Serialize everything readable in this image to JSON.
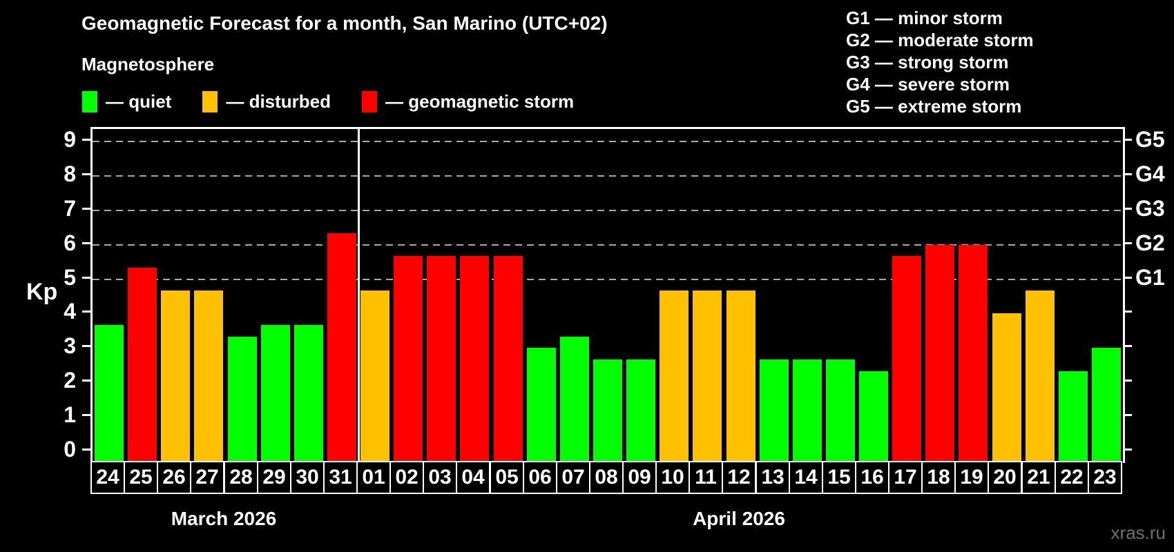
{
  "title": "Geomagnetic Forecast for a month, San Marino (UTC+02)",
  "subtitle": "Magnetosphere",
  "legend": {
    "items": [
      {
        "key": "quiet",
        "label": "— quiet",
        "color": "#00ff00"
      },
      {
        "key": "disturbed",
        "label": "— disturbed",
        "color": "#ffc000"
      },
      {
        "key": "storm",
        "label": "— geomagnetic storm",
        "color": "#ff0000"
      }
    ]
  },
  "g_legend": [
    "G1 — minor storm",
    "G2 — moderate storm",
    "G3 — strong storm",
    "G4 — severe storm",
    "G5 — extreme storm"
  ],
  "watermark": "xras.ru",
  "chart_data": {
    "type": "bar",
    "title": "Geomagnetic Forecast for a month, San Marino (UTC+02)",
    "subtitle": "Magnetosphere",
    "ylabel": "Kp",
    "ylim": [
      0,
      9.35
    ],
    "yticks": [
      0,
      1,
      2,
      3,
      4,
      5,
      6,
      7,
      8,
      9
    ],
    "gridlines_at": [
      5,
      6,
      7,
      8,
      9
    ],
    "grid": "dashed-horizontal",
    "legend_position": "top-left",
    "right_axis": [
      {
        "kp": 5,
        "label": "G1"
      },
      {
        "kp": 6,
        "label": "G2"
      },
      {
        "kp": 7,
        "label": "G3"
      },
      {
        "kp": 8,
        "label": "G4"
      },
      {
        "kp": 9,
        "label": "G5"
      }
    ],
    "colors": {
      "quiet": "#00ff00",
      "disturbed": "#ffc000",
      "storm": "#ff0000"
    },
    "groups": [
      {
        "label": "March 2026",
        "count": 8
      },
      {
        "label": "April 2026",
        "count": 23
      }
    ],
    "bars": [
      {
        "date": "24",
        "value": 3.67,
        "level": "quiet"
      },
      {
        "date": "25",
        "value": 5.33,
        "level": "storm"
      },
      {
        "date": "26",
        "value": 4.67,
        "level": "disturbed"
      },
      {
        "date": "27",
        "value": 4.67,
        "level": "disturbed"
      },
      {
        "date": "28",
        "value": 3.33,
        "level": "quiet"
      },
      {
        "date": "29",
        "value": 3.67,
        "level": "quiet"
      },
      {
        "date": "30",
        "value": 3.67,
        "level": "quiet"
      },
      {
        "date": "31",
        "value": 6.33,
        "level": "storm"
      },
      {
        "date": "01",
        "value": 4.67,
        "level": "disturbed"
      },
      {
        "date": "02",
        "value": 5.67,
        "level": "storm"
      },
      {
        "date": "03",
        "value": 5.67,
        "level": "storm"
      },
      {
        "date": "04",
        "value": 5.67,
        "level": "storm"
      },
      {
        "date": "05",
        "value": 5.67,
        "level": "storm"
      },
      {
        "date": "06",
        "value": 3.0,
        "level": "quiet"
      },
      {
        "date": "07",
        "value": 3.33,
        "level": "quiet"
      },
      {
        "date": "08",
        "value": 2.67,
        "level": "quiet"
      },
      {
        "date": "09",
        "value": 2.67,
        "level": "quiet"
      },
      {
        "date": "10",
        "value": 4.67,
        "level": "disturbed"
      },
      {
        "date": "11",
        "value": 4.67,
        "level": "disturbed"
      },
      {
        "date": "12",
        "value": 4.67,
        "level": "disturbed"
      },
      {
        "date": "13",
        "value": 2.67,
        "level": "quiet"
      },
      {
        "date": "14",
        "value": 2.67,
        "level": "quiet"
      },
      {
        "date": "15",
        "value": 2.67,
        "level": "quiet"
      },
      {
        "date": "16",
        "value": 2.33,
        "level": "quiet"
      },
      {
        "date": "17",
        "value": 5.67,
        "level": "storm"
      },
      {
        "date": "18",
        "value": 6.0,
        "level": "storm"
      },
      {
        "date": "19",
        "value": 6.0,
        "level": "storm"
      },
      {
        "date": "20",
        "value": 4.0,
        "level": "disturbed"
      },
      {
        "date": "21",
        "value": 4.67,
        "level": "disturbed"
      },
      {
        "date": "22",
        "value": 2.33,
        "level": "quiet"
      },
      {
        "date": "23",
        "value": 3.0,
        "level": "quiet"
      }
    ]
  }
}
